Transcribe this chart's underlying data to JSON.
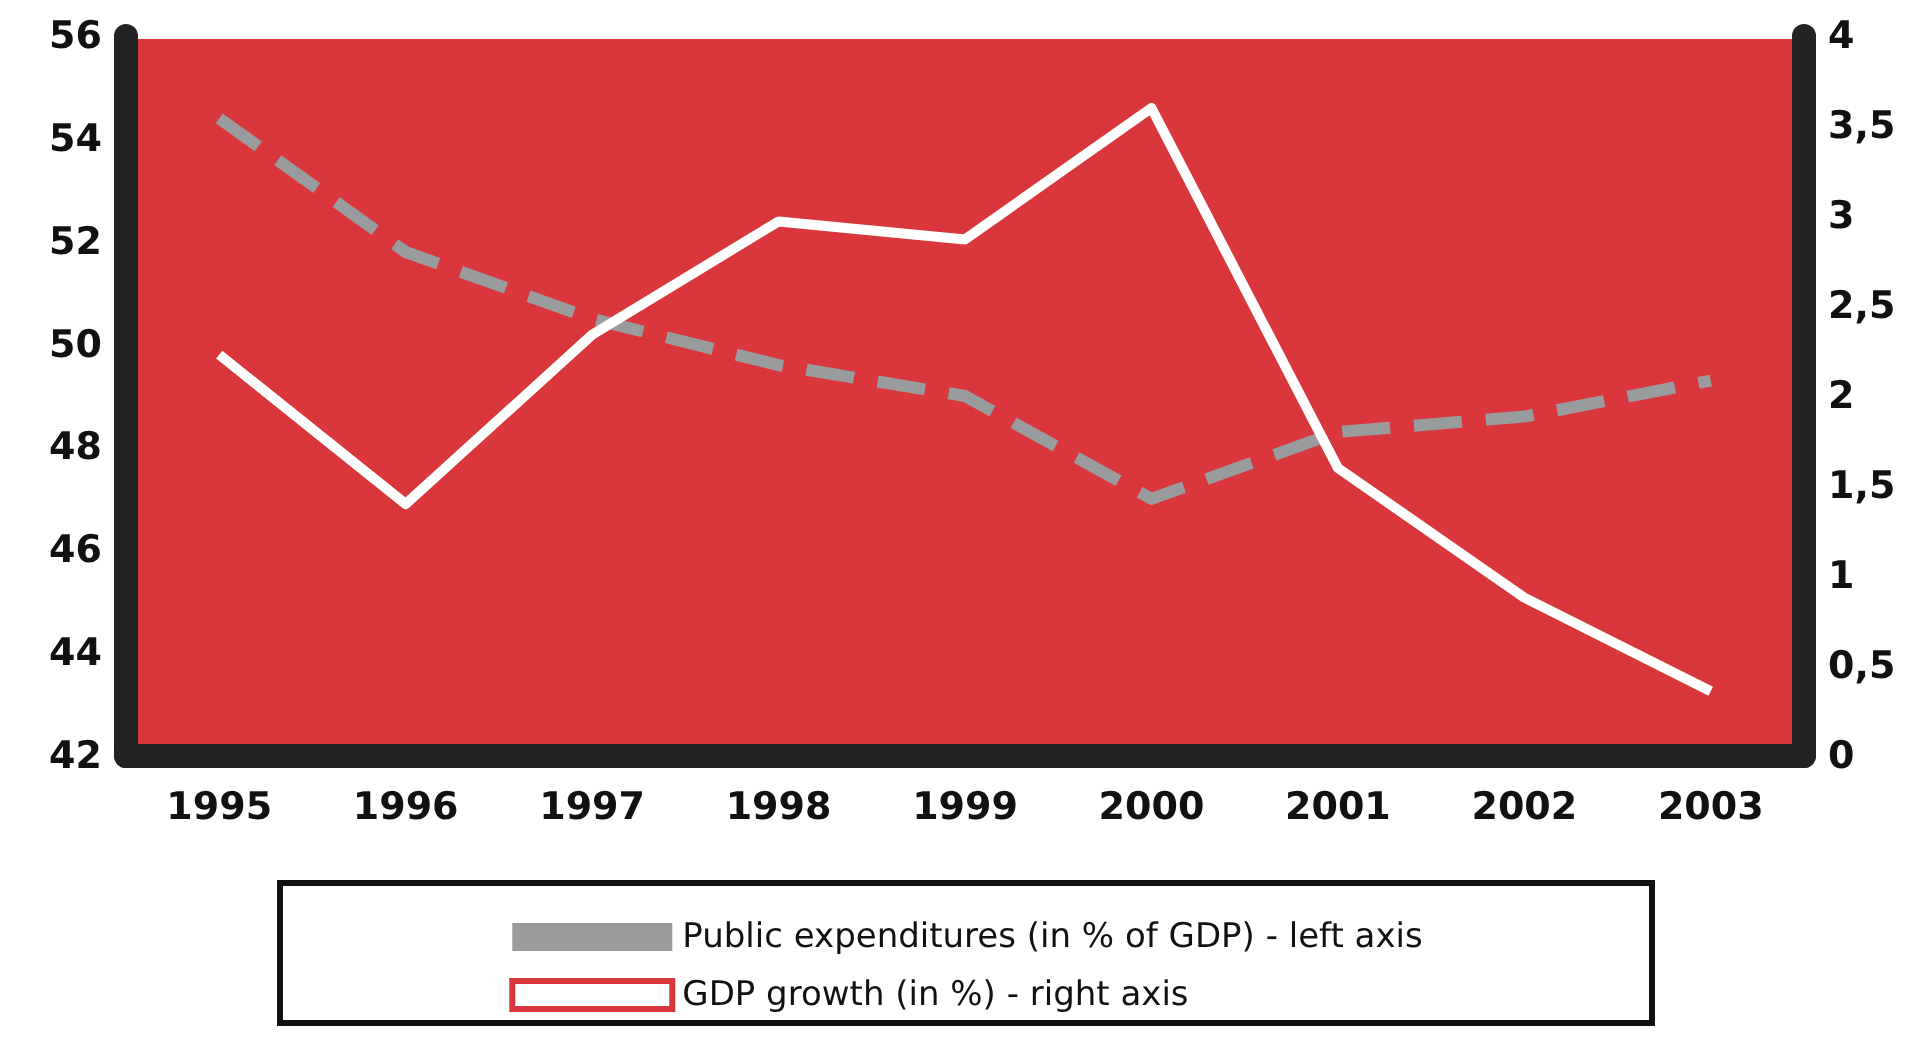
{
  "chart_data": {
    "type": "line",
    "categories": [
      "1995",
      "1996",
      "1997",
      "1998",
      "1999",
      "2000",
      "2001",
      "2002",
      "2003"
    ],
    "series": [
      {
        "name": "Public expenditures (in % of GDP) - left axis",
        "color": "#9a9b9d",
        "line_style": "dashed",
        "values": [
          54.4,
          51.8,
          50.5,
          49.6,
          49.0,
          47.0,
          48.3,
          48.6,
          49.3
        ]
      },
      {
        "name": "GDP growth (in %) - right axis",
        "color": "#ffffff",
        "line_style": "solid",
        "axis": "y2",
        "values": [
          2.23,
          1.4,
          2.34,
          2.97,
          2.87,
          3.6,
          1.6,
          0.88,
          0.36
        ]
      }
    ],
    "ylim": [
      42,
      56
    ],
    "yticks": [
      42,
      44,
      46,
      48,
      50,
      52,
      54,
      56
    ],
    "y2lim": [
      0,
      4
    ],
    "y2ticks": [
      0,
      {
        "value": 0.5,
        "label": "0,5"
      },
      1,
      {
        "value": 1.5,
        "label": "1,5"
      },
      2,
      {
        "value": 2.5,
        "label": "2,5"
      },
      3,
      {
        "value": 3.5,
        "label": "3,5"
      },
      4
    ],
    "grid": false,
    "legend": "bottom",
    "marker": "none"
  }
}
